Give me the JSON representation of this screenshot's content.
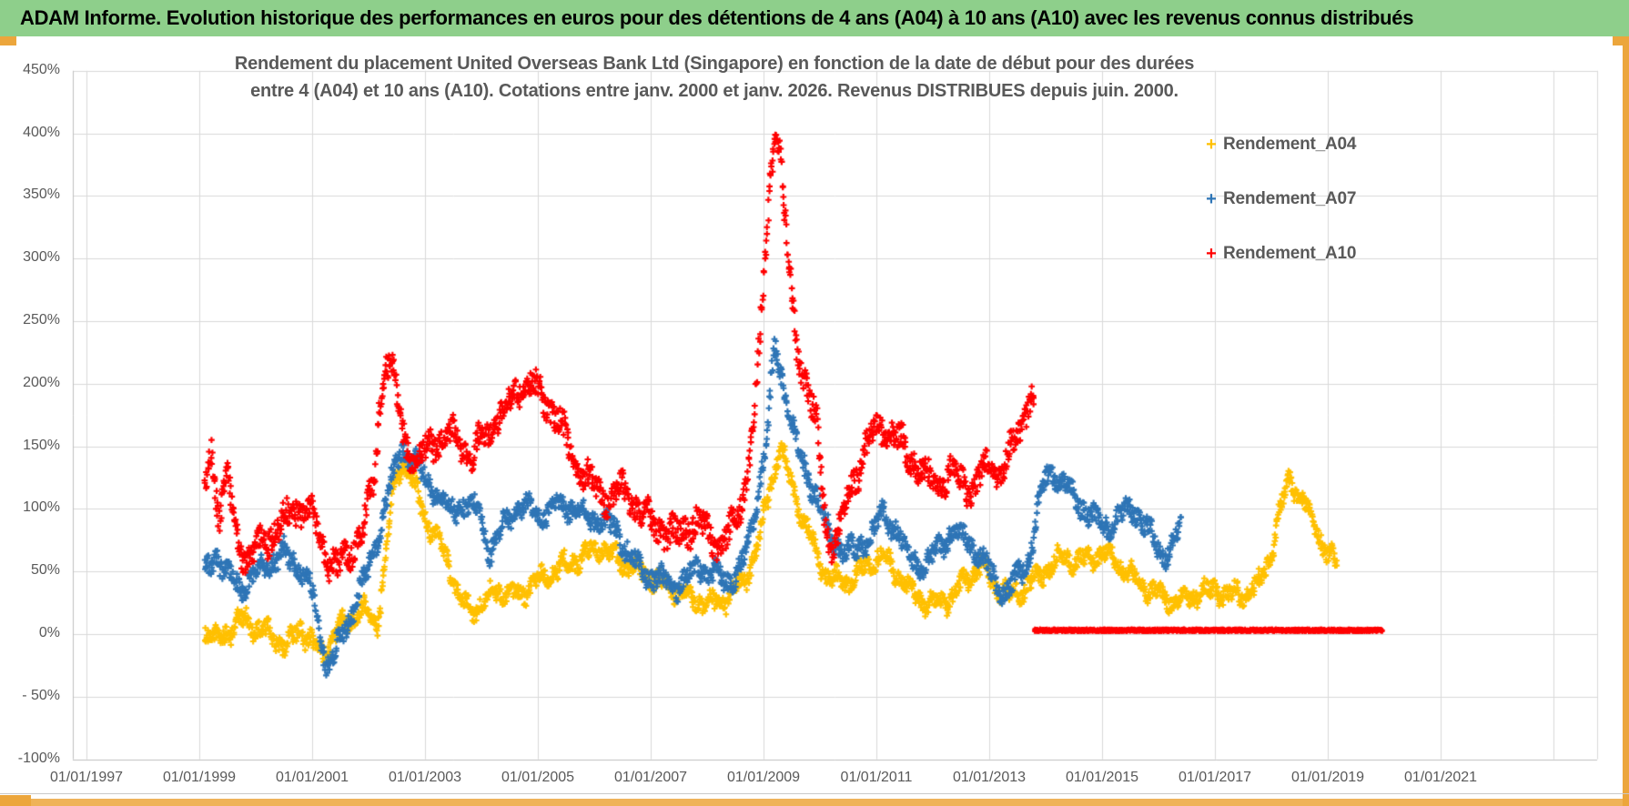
{
  "header": {
    "title": "ADAM Informe. Evolution historique des performances en euros pour des détentions de 4 ans (A04) à 10 ans (A10) avec les revenus connus distribués",
    "bg_color": "#8ecf8b",
    "frame_color": "#eca63c"
  },
  "chart": {
    "title_line1": "Rendement du placement United Overseas Bank Ltd (Singapore) en fonction de la date de début pour des durées",
    "title_line2": "entre 4 (A04) et 10 ans (A10). Cotations entre janv. 2000 et janv. 2026. Revenus DISTRIBUES depuis juin. 2000.",
    "text_color": "#595959",
    "gridline_color": "#d9d9d9",
    "axis_line_color": "#bfbfbf"
  },
  "legend": {
    "position": "right",
    "items": [
      {
        "label": "Rendement_A04",
        "color": "#FFC000",
        "marker": "plus"
      },
      {
        "label": "Rendement_A07",
        "color": "#2E75B6",
        "marker": "plus"
      },
      {
        "label": "Rendement_A10",
        "color": "#FF0000",
        "marker": "plus"
      }
    ]
  },
  "chart_data": {
    "type": "scatter",
    "title": "Rendement du placement United Overseas Bank Ltd (Singapore) en fonction de la date de début pour des durées entre 4 (A04) et 10 ans (A10). Cotations entre janv. 2000 et janv. 2026. Revenus DISTRIBUES depuis juin. 2000.",
    "xlabel": "",
    "ylabel": "",
    "grid": true,
    "legend_position": "right",
    "x_axis": {
      "type": "date",
      "tick_labels": [
        "01/01/1997",
        "01/01/1999",
        "01/01/2001",
        "01/01/2003",
        "01/01/2005",
        "01/01/2007",
        "01/01/2009",
        "01/01/2011",
        "01/01/2013",
        "01/01/2015",
        "01/01/2017",
        "01/01/2019",
        "01/01/2021"
      ],
      "tick_years": [
        1997,
        1999,
        2001,
        2003,
        2005,
        2007,
        2009,
        2011,
        2013,
        2015,
        2017,
        2019,
        2021
      ],
      "extra_gridline_years": [
        2023
      ]
    },
    "y_axis": {
      "unit": "%",
      "range": [
        -100,
        450
      ],
      "tick_values": [
        450,
        400,
        350,
        300,
        250,
        200,
        150,
        100,
        50,
        0,
        -50,
        -100
      ],
      "tick_labels": [
        "450%",
        "400%",
        "350%",
        "300%",
        "250%",
        "200%",
        "150%",
        "100%",
        "50%",
        "0%",
        "- 50%",
        "-100%"
      ]
    },
    "series": [
      {
        "name": "Rendement_A04",
        "color": "#FFC000",
        "marker": "plus",
        "spread": 6,
        "wiggle": [
          5,
          14.3,
          3,
          33.7
        ],
        "keypoints": [
          [
            1999.1,
            2
          ],
          [
            1999.3,
            -6
          ],
          [
            1999.55,
            4
          ],
          [
            1999.8,
            12
          ],
          [
            2000.05,
            4
          ],
          [
            2000.3,
            -2
          ],
          [
            2000.55,
            -10
          ],
          [
            2000.8,
            6
          ],
          [
            2001.0,
            -8
          ],
          [
            2001.2,
            -15
          ],
          [
            2001.45,
            2
          ],
          [
            2001.7,
            14
          ],
          [
            2001.95,
            20
          ],
          [
            2002.15,
            8
          ],
          [
            2002.3,
            60
          ],
          [
            2002.45,
            120
          ],
          [
            2002.6,
            140
          ],
          [
            2002.75,
            125
          ],
          [
            2002.95,
            100
          ],
          [
            2003.15,
            80
          ],
          [
            2003.4,
            60
          ],
          [
            2003.6,
            30
          ],
          [
            2003.8,
            18
          ],
          [
            2004.0,
            25
          ],
          [
            2004.3,
            35
          ],
          [
            2004.6,
            30
          ],
          [
            2004.9,
            38
          ],
          [
            2005.2,
            48
          ],
          [
            2005.5,
            55
          ],
          [
            2005.8,
            62
          ],
          [
            2006.1,
            70
          ],
          [
            2006.35,
            62
          ],
          [
            2006.6,
            55
          ],
          [
            2006.9,
            48
          ],
          [
            2007.2,
            40
          ],
          [
            2007.5,
            33
          ],
          [
            2007.8,
            28
          ],
          [
            2008.1,
            24
          ],
          [
            2008.4,
            30
          ],
          [
            2008.7,
            45
          ],
          [
            2008.95,
            80
          ],
          [
            2009.15,
            125
          ],
          [
            2009.3,
            148
          ],
          [
            2009.5,
            120
          ],
          [
            2009.7,
            92
          ],
          [
            2009.9,
            68
          ],
          [
            2010.1,
            48
          ],
          [
            2010.35,
            40
          ],
          [
            2010.6,
            45
          ],
          [
            2010.85,
            55
          ],
          [
            2011.1,
            62
          ],
          [
            2011.35,
            50
          ],
          [
            2011.6,
            35
          ],
          [
            2011.85,
            26
          ],
          [
            2012.1,
            24
          ],
          [
            2012.35,
            30
          ],
          [
            2012.6,
            45
          ],
          [
            2012.85,
            55
          ],
          [
            2013.1,
            40
          ],
          [
            2013.35,
            30
          ],
          [
            2013.6,
            35
          ],
          [
            2013.85,
            45
          ],
          [
            2014.1,
            55
          ],
          [
            2014.35,
            62
          ],
          [
            2014.6,
            58
          ],
          [
            2014.85,
            62
          ],
          [
            2015.05,
            66
          ],
          [
            2015.3,
            56
          ],
          [
            2015.55,
            44
          ],
          [
            2015.8,
            36
          ],
          [
            2016.05,
            30
          ],
          [
            2016.3,
            27
          ],
          [
            2016.55,
            30
          ],
          [
            2016.8,
            33
          ],
          [
            2017.05,
            35
          ],
          [
            2017.3,
            30
          ],
          [
            2017.55,
            33
          ],
          [
            2017.8,
            40
          ],
          [
            2018.0,
            65
          ],
          [
            2018.2,
            105
          ],
          [
            2018.3,
            126
          ],
          [
            2018.45,
            115
          ],
          [
            2018.65,
            98
          ],
          [
            2018.85,
            80
          ],
          [
            2019.0,
            62
          ],
          [
            2019.17,
            55
          ]
        ]
      },
      {
        "name": "Rendement_A07",
        "color": "#2E75B6",
        "marker": "plus",
        "spread": 7,
        "wiggle": [
          5,
          13.1,
          3,
          31.9
        ],
        "keypoints": [
          [
            1999.1,
            50
          ],
          [
            1999.3,
            64
          ],
          [
            1999.5,
            46
          ],
          [
            1999.75,
            38
          ],
          [
            2000.0,
            48
          ],
          [
            2000.25,
            58
          ],
          [
            2000.5,
            64
          ],
          [
            2000.75,
            55
          ],
          [
            2000.95,
            40
          ],
          [
            2001.1,
            12
          ],
          [
            2001.25,
            -24
          ],
          [
            2001.4,
            -16
          ],
          [
            2001.6,
            5
          ],
          [
            2001.8,
            30
          ],
          [
            2002.0,
            50
          ],
          [
            2002.2,
            85
          ],
          [
            2002.4,
            120
          ],
          [
            2002.6,
            150
          ],
          [
            2002.8,
            138
          ],
          [
            2003.0,
            125
          ],
          [
            2003.2,
            112
          ],
          [
            2003.45,
            98
          ],
          [
            2003.7,
            104
          ],
          [
            2003.95,
            98
          ],
          [
            2004.15,
            65
          ],
          [
            2004.4,
            88
          ],
          [
            2004.65,
            102
          ],
          [
            2004.9,
            98
          ],
          [
            2005.15,
            96
          ],
          [
            2005.4,
            105
          ],
          [
            2005.65,
            100
          ],
          [
            2005.9,
            94
          ],
          [
            2006.15,
            89
          ],
          [
            2006.4,
            83
          ],
          [
            2006.6,
            65
          ],
          [
            2006.85,
            50
          ],
          [
            2007.1,
            45
          ],
          [
            2007.35,
            38
          ],
          [
            2007.6,
            42
          ],
          [
            2007.85,
            55
          ],
          [
            2008.1,
            48
          ],
          [
            2008.35,
            42
          ],
          [
            2008.6,
            52
          ],
          [
            2008.85,
            95
          ],
          [
            2009.05,
            155
          ],
          [
            2009.2,
            228
          ],
          [
            2009.35,
            202
          ],
          [
            2009.55,
            158
          ],
          [
            2009.75,
            128
          ],
          [
            2009.95,
            110
          ],
          [
            2010.15,
            80
          ],
          [
            2010.4,
            68
          ],
          [
            2010.65,
            65
          ],
          [
            2010.9,
            80
          ],
          [
            2011.1,
            95
          ],
          [
            2011.35,
            85
          ],
          [
            2011.6,
            60
          ],
          [
            2011.85,
            55
          ],
          [
            2012.1,
            68
          ],
          [
            2012.35,
            82
          ],
          [
            2012.6,
            75
          ],
          [
            2012.85,
            62
          ],
          [
            2013.1,
            42
          ],
          [
            2013.3,
            32
          ],
          [
            2013.5,
            45
          ],
          [
            2013.7,
            60
          ],
          [
            2013.85,
            95
          ],
          [
            2014.0,
            125
          ],
          [
            2014.15,
            130
          ],
          [
            2014.35,
            118
          ],
          [
            2014.6,
            105
          ],
          [
            2014.85,
            92
          ],
          [
            2015.1,
            85
          ],
          [
            2015.35,
            95
          ],
          [
            2015.55,
            100
          ],
          [
            2015.75,
            88
          ],
          [
            2015.95,
            72
          ],
          [
            2016.1,
            62
          ],
          [
            2016.25,
            72
          ],
          [
            2016.4,
            85
          ]
        ]
      },
      {
        "name": "Rendement_A10",
        "color": "#FF0000",
        "marker": "plus",
        "spread": 10,
        "wiggle": [
          6,
          12.7,
          3,
          29.3
        ],
        "keypoints": [
          [
            1999.1,
            115
          ],
          [
            1999.2,
            150
          ],
          [
            1999.35,
            95
          ],
          [
            1999.5,
            125
          ],
          [
            1999.65,
            80
          ],
          [
            1999.85,
            60
          ],
          [
            2000.05,
            70
          ],
          [
            2000.3,
            80
          ],
          [
            2000.55,
            92
          ],
          [
            2000.8,
            102
          ],
          [
            2001.0,
            95
          ],
          [
            2001.15,
            75
          ],
          [
            2001.3,
            58
          ],
          [
            2001.5,
            52
          ],
          [
            2001.7,
            68
          ],
          [
            2001.9,
            85
          ],
          [
            2002.1,
            120
          ],
          [
            2002.2,
            185
          ],
          [
            2002.3,
            222
          ],
          [
            2002.4,
            215
          ],
          [
            2002.5,
            185
          ],
          [
            2002.65,
            152
          ],
          [
            2002.85,
            140
          ],
          [
            2003.05,
            148
          ],
          [
            2003.25,
            155
          ],
          [
            2003.45,
            160
          ],
          [
            2003.65,
            150
          ],
          [
            2003.85,
            145
          ],
          [
            2004.05,
            155
          ],
          [
            2004.25,
            170
          ],
          [
            2004.45,
            182
          ],
          [
            2004.65,
            195
          ],
          [
            2004.85,
            200
          ],
          [
            2005.05,
            192
          ],
          [
            2005.25,
            180
          ],
          [
            2005.45,
            162
          ],
          [
            2005.65,
            140
          ],
          [
            2005.85,
            125
          ],
          [
            2006.05,
            115
          ],
          [
            2006.25,
            108
          ],
          [
            2006.45,
            115
          ],
          [
            2006.65,
            108
          ],
          [
            2006.85,
            95
          ],
          [
            2007.05,
            88
          ],
          [
            2007.25,
            82
          ],
          [
            2007.45,
            78
          ],
          [
            2007.65,
            85
          ],
          [
            2007.85,
            90
          ],
          [
            2008.05,
            78
          ],
          [
            2008.25,
            70
          ],
          [
            2008.45,
            85
          ],
          [
            2008.65,
            110
          ],
          [
            2008.85,
            180
          ],
          [
            2009.0,
            280
          ],
          [
            2009.1,
            350
          ],
          [
            2009.2,
            408
          ],
          [
            2009.3,
            380
          ],
          [
            2009.45,
            290
          ],
          [
            2009.6,
            230
          ],
          [
            2009.8,
            190
          ],
          [
            2009.95,
            165
          ],
          [
            2010.1,
            90
          ],
          [
            2010.2,
            65
          ],
          [
            2010.35,
            85
          ],
          [
            2010.5,
            110
          ],
          [
            2010.7,
            135
          ],
          [
            2010.9,
            155
          ],
          [
            2011.1,
            168
          ],
          [
            2011.3,
            160
          ],
          [
            2011.5,
            148
          ],
          [
            2011.7,
            135
          ],
          [
            2011.9,
            125
          ],
          [
            2012.1,
            118
          ],
          [
            2012.3,
            128
          ],
          [
            2012.5,
            122
          ],
          [
            2012.7,
            115
          ],
          [
            2012.85,
            125
          ],
          [
            2013.0,
            135
          ],
          [
            2013.2,
            128
          ],
          [
            2013.35,
            140
          ],
          [
            2013.5,
            160
          ],
          [
            2013.65,
            180
          ],
          [
            2013.75,
            195
          ],
          [
            2013.8,
            175
          ]
        ],
        "flat_segment": {
          "from": 2013.8,
          "to": 2019.97,
          "value": 3,
          "spread": 1.2
        }
      }
    ]
  }
}
